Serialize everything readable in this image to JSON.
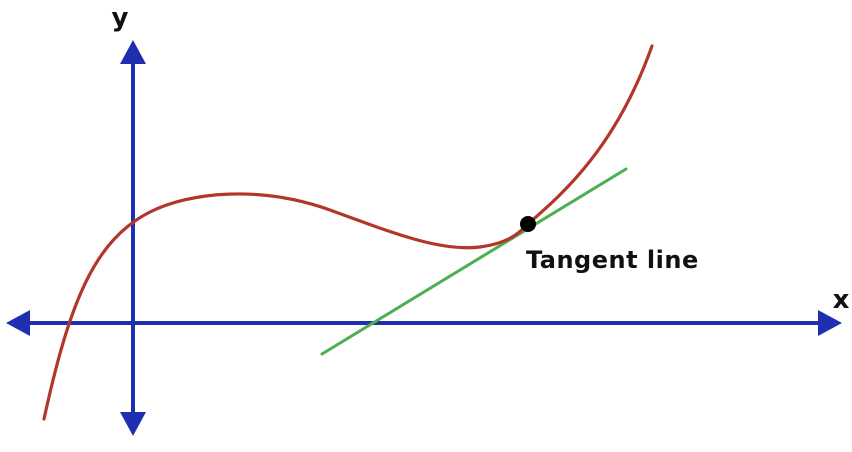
{
  "diagram": {
    "axis_labels": {
      "x": "x",
      "y": "y"
    },
    "annotation": {
      "tangent_label": "Tangent line"
    },
    "colors": {
      "axes": "#1f2fb0",
      "curve": "#b3362a",
      "tangent": "#4caf50",
      "point": "#000000",
      "text": "#111111",
      "background": "#ffffff"
    },
    "elements": {
      "curve": "cubic-curve",
      "tangent": "tangent-line",
      "point": "point-of-tangency",
      "axes": "coordinate-axes-with-arrowheads"
    }
  }
}
